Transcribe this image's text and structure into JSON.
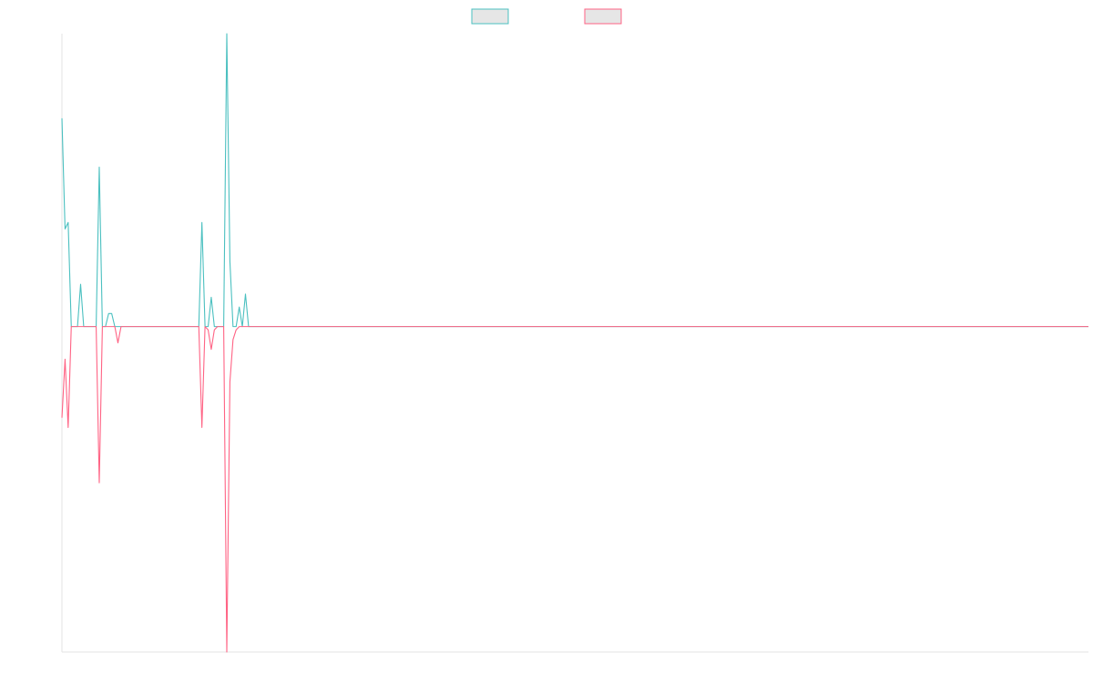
{
  "chart_data": {
    "type": "line",
    "title": "",
    "xlabel": "",
    "ylabel": "",
    "grid": false,
    "legend_position": "top-center",
    "x_count": 331,
    "ylim": [
      -100,
      90
    ],
    "series": [
      {
        "name": "",
        "color": "#4bc0c0",
        "legend_fill": "#e6e6e6",
        "points": [
          [
            0,
            64
          ],
          [
            1,
            30
          ],
          [
            2,
            32
          ],
          [
            3,
            0
          ],
          [
            4,
            0
          ],
          [
            5,
            0
          ],
          [
            6,
            13
          ],
          [
            7,
            0
          ],
          [
            8,
            0
          ],
          [
            9,
            0
          ],
          [
            10,
            0
          ],
          [
            11,
            0
          ],
          [
            12,
            49
          ],
          [
            13,
            0
          ],
          [
            14,
            0
          ],
          [
            15,
            4
          ],
          [
            16,
            4
          ],
          [
            17,
            0
          ],
          [
            18,
            0
          ],
          [
            19,
            0
          ],
          [
            20,
            0
          ],
          [
            21,
            0
          ],
          [
            22,
            0
          ],
          [
            23,
            0
          ],
          [
            24,
            0
          ],
          [
            25,
            0
          ],
          [
            26,
            0
          ],
          [
            27,
            0
          ],
          [
            28,
            0
          ],
          [
            29,
            0
          ],
          [
            30,
            0
          ],
          [
            31,
            0
          ],
          [
            32,
            0
          ],
          [
            33,
            0
          ],
          [
            34,
            0
          ],
          [
            35,
            0
          ],
          [
            36,
            0
          ],
          [
            37,
            0
          ],
          [
            38,
            0
          ],
          [
            39,
            0
          ],
          [
            40,
            0
          ],
          [
            41,
            0
          ],
          [
            42,
            0
          ],
          [
            43,
            0
          ],
          [
            44,
            0
          ],
          [
            45,
            32
          ],
          [
            46,
            0
          ],
          [
            47,
            0
          ],
          [
            48,
            9
          ],
          [
            49,
            0
          ],
          [
            50,
            0
          ],
          [
            51,
            0
          ],
          [
            52,
            0
          ],
          [
            53,
            90
          ],
          [
            54,
            20
          ],
          [
            55,
            0
          ],
          [
            56,
            0
          ],
          [
            57,
            6
          ],
          [
            58,
            0
          ],
          [
            59,
            10
          ],
          [
            60,
            0
          ],
          [
            61,
            0
          ],
          [
            62,
            0
          ],
          [
            330,
            0
          ]
        ]
      },
      {
        "name": "",
        "color": "#ff6384",
        "legend_fill": "#e6e6e6",
        "points": [
          [
            0,
            -28
          ],
          [
            1,
            -10
          ],
          [
            2,
            -31
          ],
          [
            3,
            0
          ],
          [
            4,
            0
          ],
          [
            5,
            0
          ],
          [
            6,
            0
          ],
          [
            7,
            0
          ],
          [
            8,
            0
          ],
          [
            9,
            0
          ],
          [
            10,
            0
          ],
          [
            11,
            0
          ],
          [
            12,
            -48
          ],
          [
            13,
            0
          ],
          [
            14,
            0
          ],
          [
            15,
            0
          ],
          [
            16,
            0
          ],
          [
            17,
            0
          ],
          [
            18,
            -5
          ],
          [
            19,
            0
          ],
          [
            20,
            0
          ],
          [
            21,
            0
          ],
          [
            22,
            0
          ],
          [
            23,
            0
          ],
          [
            24,
            0
          ],
          [
            25,
            0
          ],
          [
            26,
            0
          ],
          [
            27,
            0
          ],
          [
            28,
            0
          ],
          [
            29,
            0
          ],
          [
            30,
            0
          ],
          [
            31,
            0
          ],
          [
            32,
            0
          ],
          [
            33,
            0
          ],
          [
            34,
            0
          ],
          [
            35,
            0
          ],
          [
            36,
            0
          ],
          [
            37,
            0
          ],
          [
            38,
            0
          ],
          [
            39,
            0
          ],
          [
            40,
            0
          ],
          [
            41,
            0
          ],
          [
            42,
            0
          ],
          [
            43,
            0
          ],
          [
            44,
            0
          ],
          [
            45,
            -31
          ],
          [
            46,
            0
          ],
          [
            47,
            -1
          ],
          [
            48,
            -7
          ],
          [
            49,
            -1
          ],
          [
            50,
            0
          ],
          [
            51,
            0
          ],
          [
            52,
            0
          ],
          [
            53,
            -100
          ],
          [
            54,
            -17
          ],
          [
            55,
            -4
          ],
          [
            56,
            -1
          ],
          [
            57,
            0
          ],
          [
            58,
            0
          ],
          [
            59,
            0
          ],
          [
            60,
            0
          ],
          [
            61,
            0
          ],
          [
            62,
            0
          ],
          [
            330,
            0
          ]
        ]
      }
    ]
  }
}
